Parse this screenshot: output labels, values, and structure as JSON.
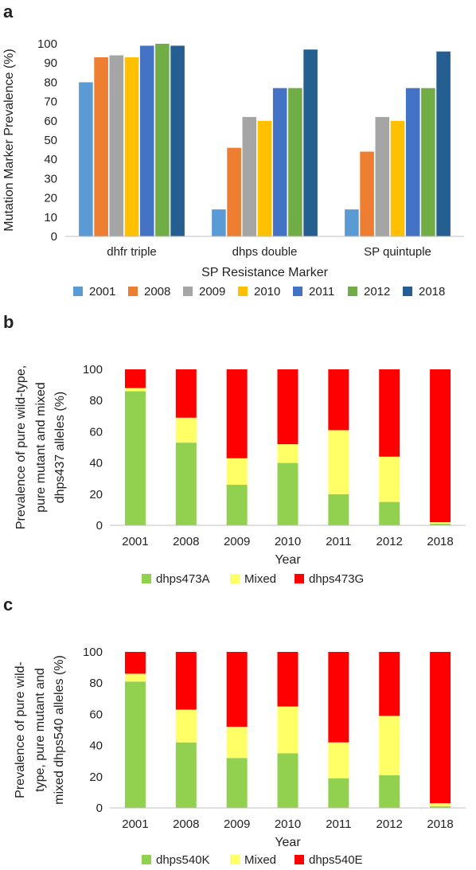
{
  "chart_data": [
    {
      "panel_label": "a",
      "type": "bar",
      "xlabel": "SP Resistance Marker",
      "ylabel": "Mutation Marker Prevalence (%)",
      "ylim": [
        0,
        100
      ],
      "yticks": [
        0,
        10,
        20,
        30,
        40,
        50,
        60,
        70,
        80,
        90,
        100
      ],
      "grid": false,
      "legend_position": "bottom",
      "categories": [
        "dhfr triple",
        "dhps double",
        "SP quintuple"
      ],
      "series": [
        {
          "name": "2001",
          "color": "#5B9BD5",
          "values": [
            80,
            14,
            14
          ]
        },
        {
          "name": "2008",
          "color": "#ED7D31",
          "values": [
            93,
            46,
            44
          ]
        },
        {
          "name": "2009",
          "color": "#A5A5A5",
          "values": [
            94,
            62,
            62
          ]
        },
        {
          "name": "2010",
          "color": "#FFC000",
          "values": [
            93,
            60,
            60
          ]
        },
        {
          "name": "2011",
          "color": "#4472C4",
          "values": [
            99,
            77,
            77
          ]
        },
        {
          "name": "2012",
          "color": "#70AD47",
          "values": [
            100,
            77,
            77
          ]
        },
        {
          "name": "2018",
          "color": "#255E91",
          "values": [
            99,
            97,
            96
          ]
        }
      ]
    },
    {
      "panel_label": "b",
      "type": "bar",
      "stacked": true,
      "xlabel": "Year",
      "ylabel_lines": [
        "Prevalence of pure wild-type,",
        "pure mutant and mixed",
        "dhps437 alleles (%)"
      ],
      "ylim": [
        0,
        100
      ],
      "yticks": [
        0,
        20,
        40,
        60,
        80,
        100
      ],
      "grid": false,
      "legend_position": "bottom",
      "categories": [
        "2001",
        "2008",
        "2009",
        "2010",
        "2011",
        "2012",
        "2018"
      ],
      "series": [
        {
          "name": "dhps473A",
          "color": "#92D050",
          "values": [
            86,
            53,
            26,
            40,
            20,
            15,
            1
          ]
        },
        {
          "name": "Mixed",
          "color": "#FFFF66",
          "values": [
            2,
            16,
            17,
            12,
            41,
            29,
            1
          ]
        },
        {
          "name": "dhps473G",
          "color": "#FF0000",
          "values": [
            12,
            31,
            57,
            48,
            39,
            56,
            98
          ]
        }
      ]
    },
    {
      "panel_label": "c",
      "type": "bar",
      "stacked": true,
      "xlabel": "Year",
      "ylabel_lines": [
        "Prevalence of pure wild-",
        "type, pure mutant and",
        "mixed dhps540 alleles (%)"
      ],
      "ylim": [
        0,
        100
      ],
      "yticks": [
        0,
        20,
        40,
        60,
        80,
        100
      ],
      "grid": false,
      "legend_position": "bottom",
      "categories": [
        "2001",
        "2008",
        "2009",
        "2010",
        "2011",
        "2012",
        "2018"
      ],
      "series": [
        {
          "name": "dhps540K",
          "color": "#92D050",
          "values": [
            81,
            42,
            32,
            35,
            19,
            21,
            1
          ]
        },
        {
          "name": "Mixed",
          "color": "#FFFF66",
          "values": [
            5,
            21,
            20,
            30,
            23,
            38,
            2
          ]
        },
        {
          "name": "dhps540E",
          "color": "#FF0000",
          "values": [
            14,
            37,
            48,
            35,
            58,
            41,
            97
          ]
        }
      ]
    }
  ]
}
